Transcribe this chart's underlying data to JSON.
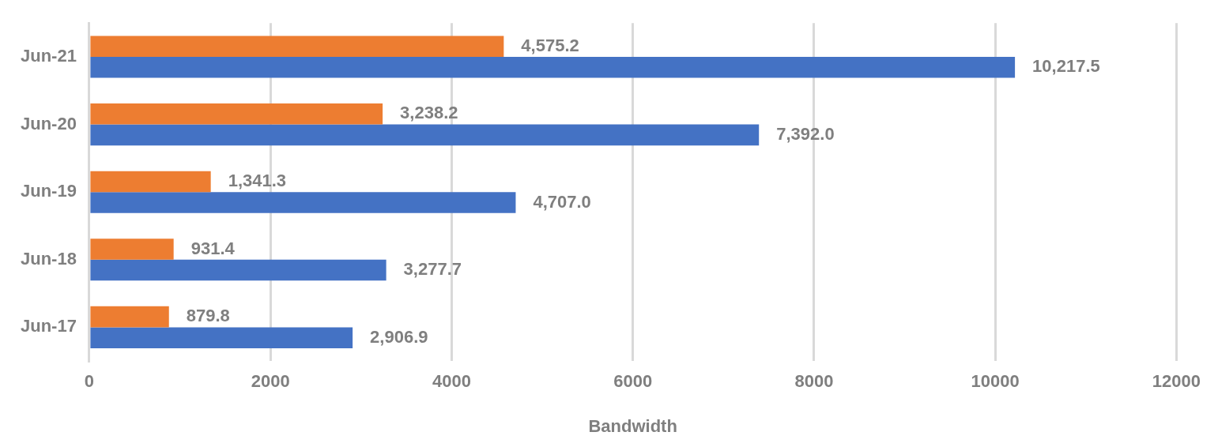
{
  "chart_data": {
    "type": "bar",
    "orientation": "horizontal",
    "xlabel": "Bandwidth",
    "categories": [
      "Jun-21",
      "Jun-20",
      "Jun-19",
      "Jun-18",
      "Jun-17"
    ],
    "series": [
      {
        "color": "#ed7d31",
        "values": [
          4575.2,
          3238.2,
          1341.3,
          931.4,
          879.8
        ],
        "value_labels": [
          "4,575.2",
          "3,238.2",
          "1,341.3",
          "931.4",
          "879.8"
        ]
      },
      {
        "color": "#4472c4",
        "values": [
          10217.5,
          7392.0,
          4707.0,
          3277.7,
          2906.9
        ],
        "value_labels": [
          "10,217.5",
          "7,392.0",
          "4,707.0",
          "3,277.7",
          "2,906.9"
        ]
      }
    ],
    "xlim": [
      0,
      12000
    ],
    "xticks": [
      0,
      2000,
      4000,
      6000,
      8000,
      10000,
      12000
    ],
    "grid": "x",
    "legend": false
  }
}
